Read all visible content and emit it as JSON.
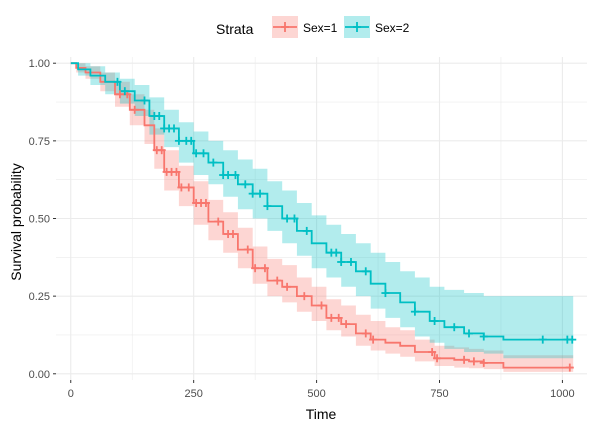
{
  "chart_data": {
    "type": "line",
    "subtype": "kaplan-meier survival curve with confidence bands and censor marks",
    "xlabel": "Time",
    "ylabel": "Survival probability",
    "xlim": [
      -30,
      1050
    ],
    "ylim": [
      -0.02,
      1.02
    ],
    "x_ticks": [
      0,
      250,
      500,
      750,
      1000
    ],
    "y_ticks": [
      0,
      0.25,
      0.5,
      0.75,
      1.0
    ],
    "x_tick_labels": [
      "0",
      "250",
      "500",
      "750",
      "1000"
    ],
    "y_tick_labels": [
      "0.00",
      "0.25",
      "0.50",
      "0.75",
      "1.00"
    ],
    "grid": true,
    "legend": {
      "title": "Strata",
      "position": "top"
    },
    "series": [
      {
        "name": "Sex=1",
        "color": "#F8766D",
        "band_color": "#F8766D",
        "curve": [
          [
            0,
            1.0
          ],
          [
            11,
            0.985
          ],
          [
            30,
            0.97
          ],
          [
            60,
            0.94
          ],
          [
            90,
            0.9
          ],
          [
            120,
            0.85
          ],
          [
            150,
            0.8
          ],
          [
            170,
            0.72
          ],
          [
            190,
            0.65
          ],
          [
            220,
            0.6
          ],
          [
            250,
            0.55
          ],
          [
            280,
            0.49
          ],
          [
            310,
            0.45
          ],
          [
            340,
            0.4
          ],
          [
            370,
            0.34
          ],
          [
            400,
            0.3
          ],
          [
            430,
            0.28
          ],
          [
            460,
            0.25
          ],
          [
            490,
            0.22
          ],
          [
            520,
            0.18
          ],
          [
            550,
            0.16
          ],
          [
            580,
            0.13
          ],
          [
            610,
            0.11
          ],
          [
            640,
            0.1
          ],
          [
            670,
            0.09
          ],
          [
            700,
            0.07
          ],
          [
            740,
            0.05
          ],
          [
            780,
            0.045
          ],
          [
            810,
            0.04
          ],
          [
            840,
            0.035
          ],
          [
            880,
            0.02
          ],
          [
            1010,
            0.02
          ],
          [
            1022,
            0.02
          ]
        ],
        "upper": [
          [
            0,
            1.0
          ],
          [
            11,
            1.0
          ],
          [
            30,
            0.99
          ],
          [
            60,
            0.97
          ],
          [
            90,
            0.94
          ],
          [
            120,
            0.9
          ],
          [
            150,
            0.85
          ],
          [
            170,
            0.79
          ],
          [
            190,
            0.72
          ],
          [
            220,
            0.67
          ],
          [
            250,
            0.62
          ],
          [
            280,
            0.56
          ],
          [
            310,
            0.52
          ],
          [
            340,
            0.47
          ],
          [
            370,
            0.41
          ],
          [
            400,
            0.37
          ],
          [
            430,
            0.35
          ],
          [
            460,
            0.31
          ],
          [
            490,
            0.28
          ],
          [
            520,
            0.24
          ],
          [
            550,
            0.22
          ],
          [
            580,
            0.19
          ],
          [
            610,
            0.17
          ],
          [
            640,
            0.15
          ],
          [
            670,
            0.14
          ],
          [
            700,
            0.11
          ],
          [
            740,
            0.09
          ],
          [
            780,
            0.085
          ],
          [
            810,
            0.08
          ],
          [
            840,
            0.075
          ],
          [
            880,
            0.06
          ],
          [
            1022,
            0.06
          ]
        ],
        "lower": [
          [
            0,
            1.0
          ],
          [
            11,
            0.97
          ],
          [
            30,
            0.95
          ],
          [
            60,
            0.91
          ],
          [
            90,
            0.86
          ],
          [
            120,
            0.8
          ],
          [
            150,
            0.74
          ],
          [
            170,
            0.66
          ],
          [
            190,
            0.59
          ],
          [
            220,
            0.54
          ],
          [
            250,
            0.48
          ],
          [
            280,
            0.43
          ],
          [
            310,
            0.39
          ],
          [
            340,
            0.34
          ],
          [
            370,
            0.29
          ],
          [
            400,
            0.25
          ],
          [
            430,
            0.23
          ],
          [
            460,
            0.2
          ],
          [
            490,
            0.17
          ],
          [
            520,
            0.14
          ],
          [
            550,
            0.12
          ],
          [
            580,
            0.09
          ],
          [
            610,
            0.075
          ],
          [
            640,
            0.065
          ],
          [
            670,
            0.055
          ],
          [
            700,
            0.04
          ],
          [
            740,
            0.025
          ],
          [
            780,
            0.02
          ],
          [
            810,
            0.018
          ],
          [
            840,
            0.015
          ],
          [
            880,
            0.006
          ],
          [
            1022,
            0.006
          ]
        ],
        "censor_times": [
          100,
          115,
          130,
          175,
          185,
          195,
          205,
          215,
          225,
          240,
          255,
          265,
          275,
          300,
          320,
          330,
          360,
          375,
          395,
          420,
          440,
          475,
          510,
          530,
          545,
          560,
          600,
          615,
          735,
          745,
          800,
          820,
          840,
          1015
        ]
      },
      {
        "name": "Sex=2",
        "color": "#00BFC4",
        "band_color": "#00BFC4",
        "curve": [
          [
            0,
            1.0
          ],
          [
            15,
            0.98
          ],
          [
            40,
            0.96
          ],
          [
            70,
            0.94
          ],
          [
            100,
            0.91
          ],
          [
            130,
            0.88
          ],
          [
            160,
            0.83
          ],
          [
            190,
            0.79
          ],
          [
            220,
            0.75
          ],
          [
            250,
            0.71
          ],
          [
            280,
            0.68
          ],
          [
            310,
            0.64
          ],
          [
            340,
            0.61
          ],
          [
            370,
            0.58
          ],
          [
            400,
            0.54
          ],
          [
            430,
            0.5
          ],
          [
            460,
            0.46
          ],
          [
            490,
            0.42
          ],
          [
            520,
            0.39
          ],
          [
            550,
            0.36
          ],
          [
            580,
            0.33
          ],
          [
            610,
            0.29
          ],
          [
            640,
            0.26
          ],
          [
            670,
            0.23
          ],
          [
            700,
            0.2
          ],
          [
            730,
            0.17
          ],
          [
            760,
            0.15
          ],
          [
            800,
            0.13
          ],
          [
            840,
            0.12
          ],
          [
            880,
            0.11
          ],
          [
            1022,
            0.11
          ]
        ],
        "upper": [
          [
            0,
            1.0
          ],
          [
            15,
            1.0
          ],
          [
            40,
            0.99
          ],
          [
            70,
            0.97
          ],
          [
            100,
            0.95
          ],
          [
            130,
            0.93
          ],
          [
            160,
            0.89
          ],
          [
            190,
            0.85
          ],
          [
            220,
            0.81
          ],
          [
            250,
            0.78
          ],
          [
            280,
            0.75
          ],
          [
            310,
            0.72
          ],
          [
            340,
            0.69
          ],
          [
            370,
            0.66
          ],
          [
            400,
            0.62
          ],
          [
            430,
            0.59
          ],
          [
            460,
            0.55
          ],
          [
            490,
            0.51
          ],
          [
            520,
            0.48
          ],
          [
            550,
            0.45
          ],
          [
            580,
            0.42
          ],
          [
            610,
            0.39
          ],
          [
            640,
            0.36
          ],
          [
            670,
            0.33
          ],
          [
            700,
            0.31
          ],
          [
            730,
            0.28
          ],
          [
            760,
            0.27
          ],
          [
            800,
            0.26
          ],
          [
            840,
            0.25
          ],
          [
            880,
            0.25
          ],
          [
            1022,
            0.25
          ]
        ],
        "lower": [
          [
            0,
            1.0
          ],
          [
            15,
            0.96
          ],
          [
            40,
            0.93
          ],
          [
            70,
            0.9
          ],
          [
            100,
            0.87
          ],
          [
            130,
            0.83
          ],
          [
            160,
            0.77
          ],
          [
            190,
            0.73
          ],
          [
            220,
            0.68
          ],
          [
            250,
            0.64
          ],
          [
            280,
            0.61
          ],
          [
            310,
            0.57
          ],
          [
            340,
            0.53
          ],
          [
            370,
            0.5
          ],
          [
            400,
            0.46
          ],
          [
            430,
            0.42
          ],
          [
            460,
            0.38
          ],
          [
            490,
            0.34
          ],
          [
            520,
            0.31
          ],
          [
            550,
            0.28
          ],
          [
            580,
            0.25
          ],
          [
            610,
            0.21
          ],
          [
            640,
            0.18
          ],
          [
            670,
            0.15
          ],
          [
            700,
            0.12
          ],
          [
            730,
            0.1
          ],
          [
            760,
            0.08
          ],
          [
            800,
            0.07
          ],
          [
            840,
            0.065
          ],
          [
            880,
            0.05
          ],
          [
            1022,
            0.05
          ]
        ],
        "censor_times": [
          95,
          110,
          150,
          170,
          180,
          190,
          200,
          210,
          220,
          235,
          245,
          255,
          270,
          290,
          310,
          320,
          335,
          355,
          370,
          385,
          400,
          440,
          455,
          480,
          530,
          540,
          550,
          570,
          600,
          640,
          700,
          740,
          780,
          810,
          840,
          960,
          1010,
          1020
        ]
      }
    ]
  }
}
